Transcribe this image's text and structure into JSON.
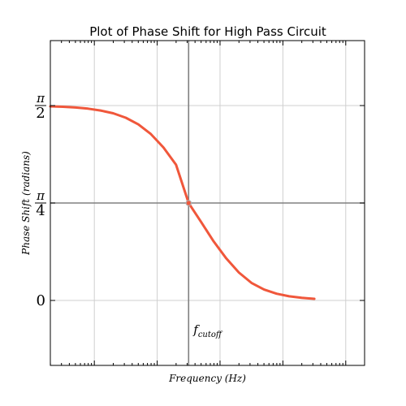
{
  "chart_data": {
    "type": "line",
    "title": "Plot of Phase Shift for High Pass Circuit",
    "xlabel": "Frequency (Hz)",
    "ylabel": "Phase Shift (radians)",
    "x_scale": "log",
    "xlim_decades_below_cutoff": -2.2,
    "xlim_decades_above_cutoff": 2.8,
    "ylim": [
      -0.5236,
      2.0944
    ],
    "yticks": [
      {
        "value": 0,
        "label": "0"
      },
      {
        "value": 0.7854,
        "numerator": "π",
        "denominator": "4"
      },
      {
        "value": 1.5708,
        "numerator": "π",
        "denominator": "2"
      }
    ],
    "grid": true,
    "series": [
      {
        "color": "#f0573b",
        "x_decades_from_cutoff": [
          -2.2,
          -2.0,
          -1.8,
          -1.6,
          -1.4,
          -1.2,
          -1.0,
          -0.8,
          -0.6,
          -0.4,
          -0.2,
          0.0,
          0.2,
          0.4,
          0.6,
          0.8,
          1.0,
          1.2,
          1.4,
          1.6,
          1.8,
          2.0
        ],
        "y": [
          1.5645,
          1.5608,
          1.555,
          1.5458,
          1.5312,
          1.5083,
          1.4726,
          1.4189,
          1.341,
          1.2328,
          1.0935,
          0.7854,
          0.6311,
          0.4754,
          0.3382,
          0.2254,
          0.1416,
          0.0879,
          0.0541,
          0.0332,
          0.0209,
          0.0134
        ]
      }
    ],
    "annotations": [
      {
        "text": "f",
        "subscript": "cutoff",
        "at": "cutoff"
      }
    ]
  }
}
